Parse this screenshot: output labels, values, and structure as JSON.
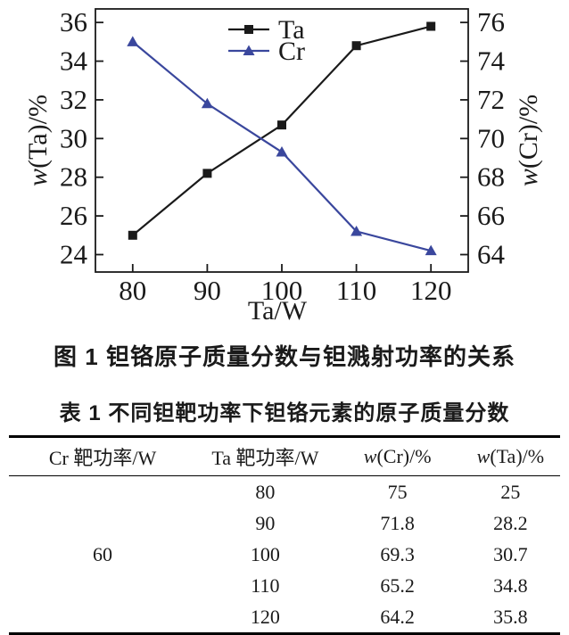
{
  "figure": {
    "caption": "图 1  钽铬原子质量分数与钽溅射功率的关系"
  },
  "chart_data": {
    "type": "line",
    "x": [
      80,
      90,
      100,
      110,
      120
    ],
    "x_ticks": [
      80,
      90,
      100,
      110,
      120
    ],
    "xlim": [
      75,
      125
    ],
    "xlabel": "Ta/W",
    "y_left": {
      "label": "w(Ta)/%",
      "min": 23.1,
      "max": 36.7,
      "ticks": [
        24,
        26,
        28,
        30,
        32,
        34,
        36
      ]
    },
    "y_right": {
      "label": "w(Cr)/%",
      "min": 63.1,
      "max": 76.7,
      "ticks": [
        64,
        66,
        68,
        70,
        72,
        74,
        76
      ]
    },
    "series": [
      {
        "name": "Ta",
        "axis": "left",
        "marker": "square",
        "color": "#1a1a1a",
        "values": [
          25,
          28.2,
          30.7,
          34.8,
          35.8
        ]
      },
      {
        "name": "Cr",
        "axis": "right",
        "marker": "triangle",
        "color": "#3a479d",
        "values": [
          75,
          71.8,
          69.3,
          65.2,
          64.2
        ]
      }
    ],
    "legend": {
      "position": "top-center",
      "entries": [
        "Ta",
        "Cr"
      ]
    },
    "grid": false
  },
  "table": {
    "title": "表 1  不同钽靶功率下钽铬元素的原子质量分数",
    "headers": [
      "Cr 靶功率/W",
      "Ta 靶功率/W",
      "w(Cr)/%",
      "w(Ta)/%"
    ],
    "cr_power": "60",
    "rows": [
      [
        "80",
        "75",
        "25"
      ],
      [
        "90",
        "71.8",
        "28.2"
      ],
      [
        "100",
        "69.3",
        "30.7"
      ],
      [
        "110",
        "65.2",
        "34.8"
      ],
      [
        "120",
        "64.2",
        "35.8"
      ]
    ]
  },
  "colors": {
    "text": "#1a1a1a",
    "series_ta": "#1a1a1a",
    "series_cr": "#3a479d",
    "background": "#ffffff"
  }
}
